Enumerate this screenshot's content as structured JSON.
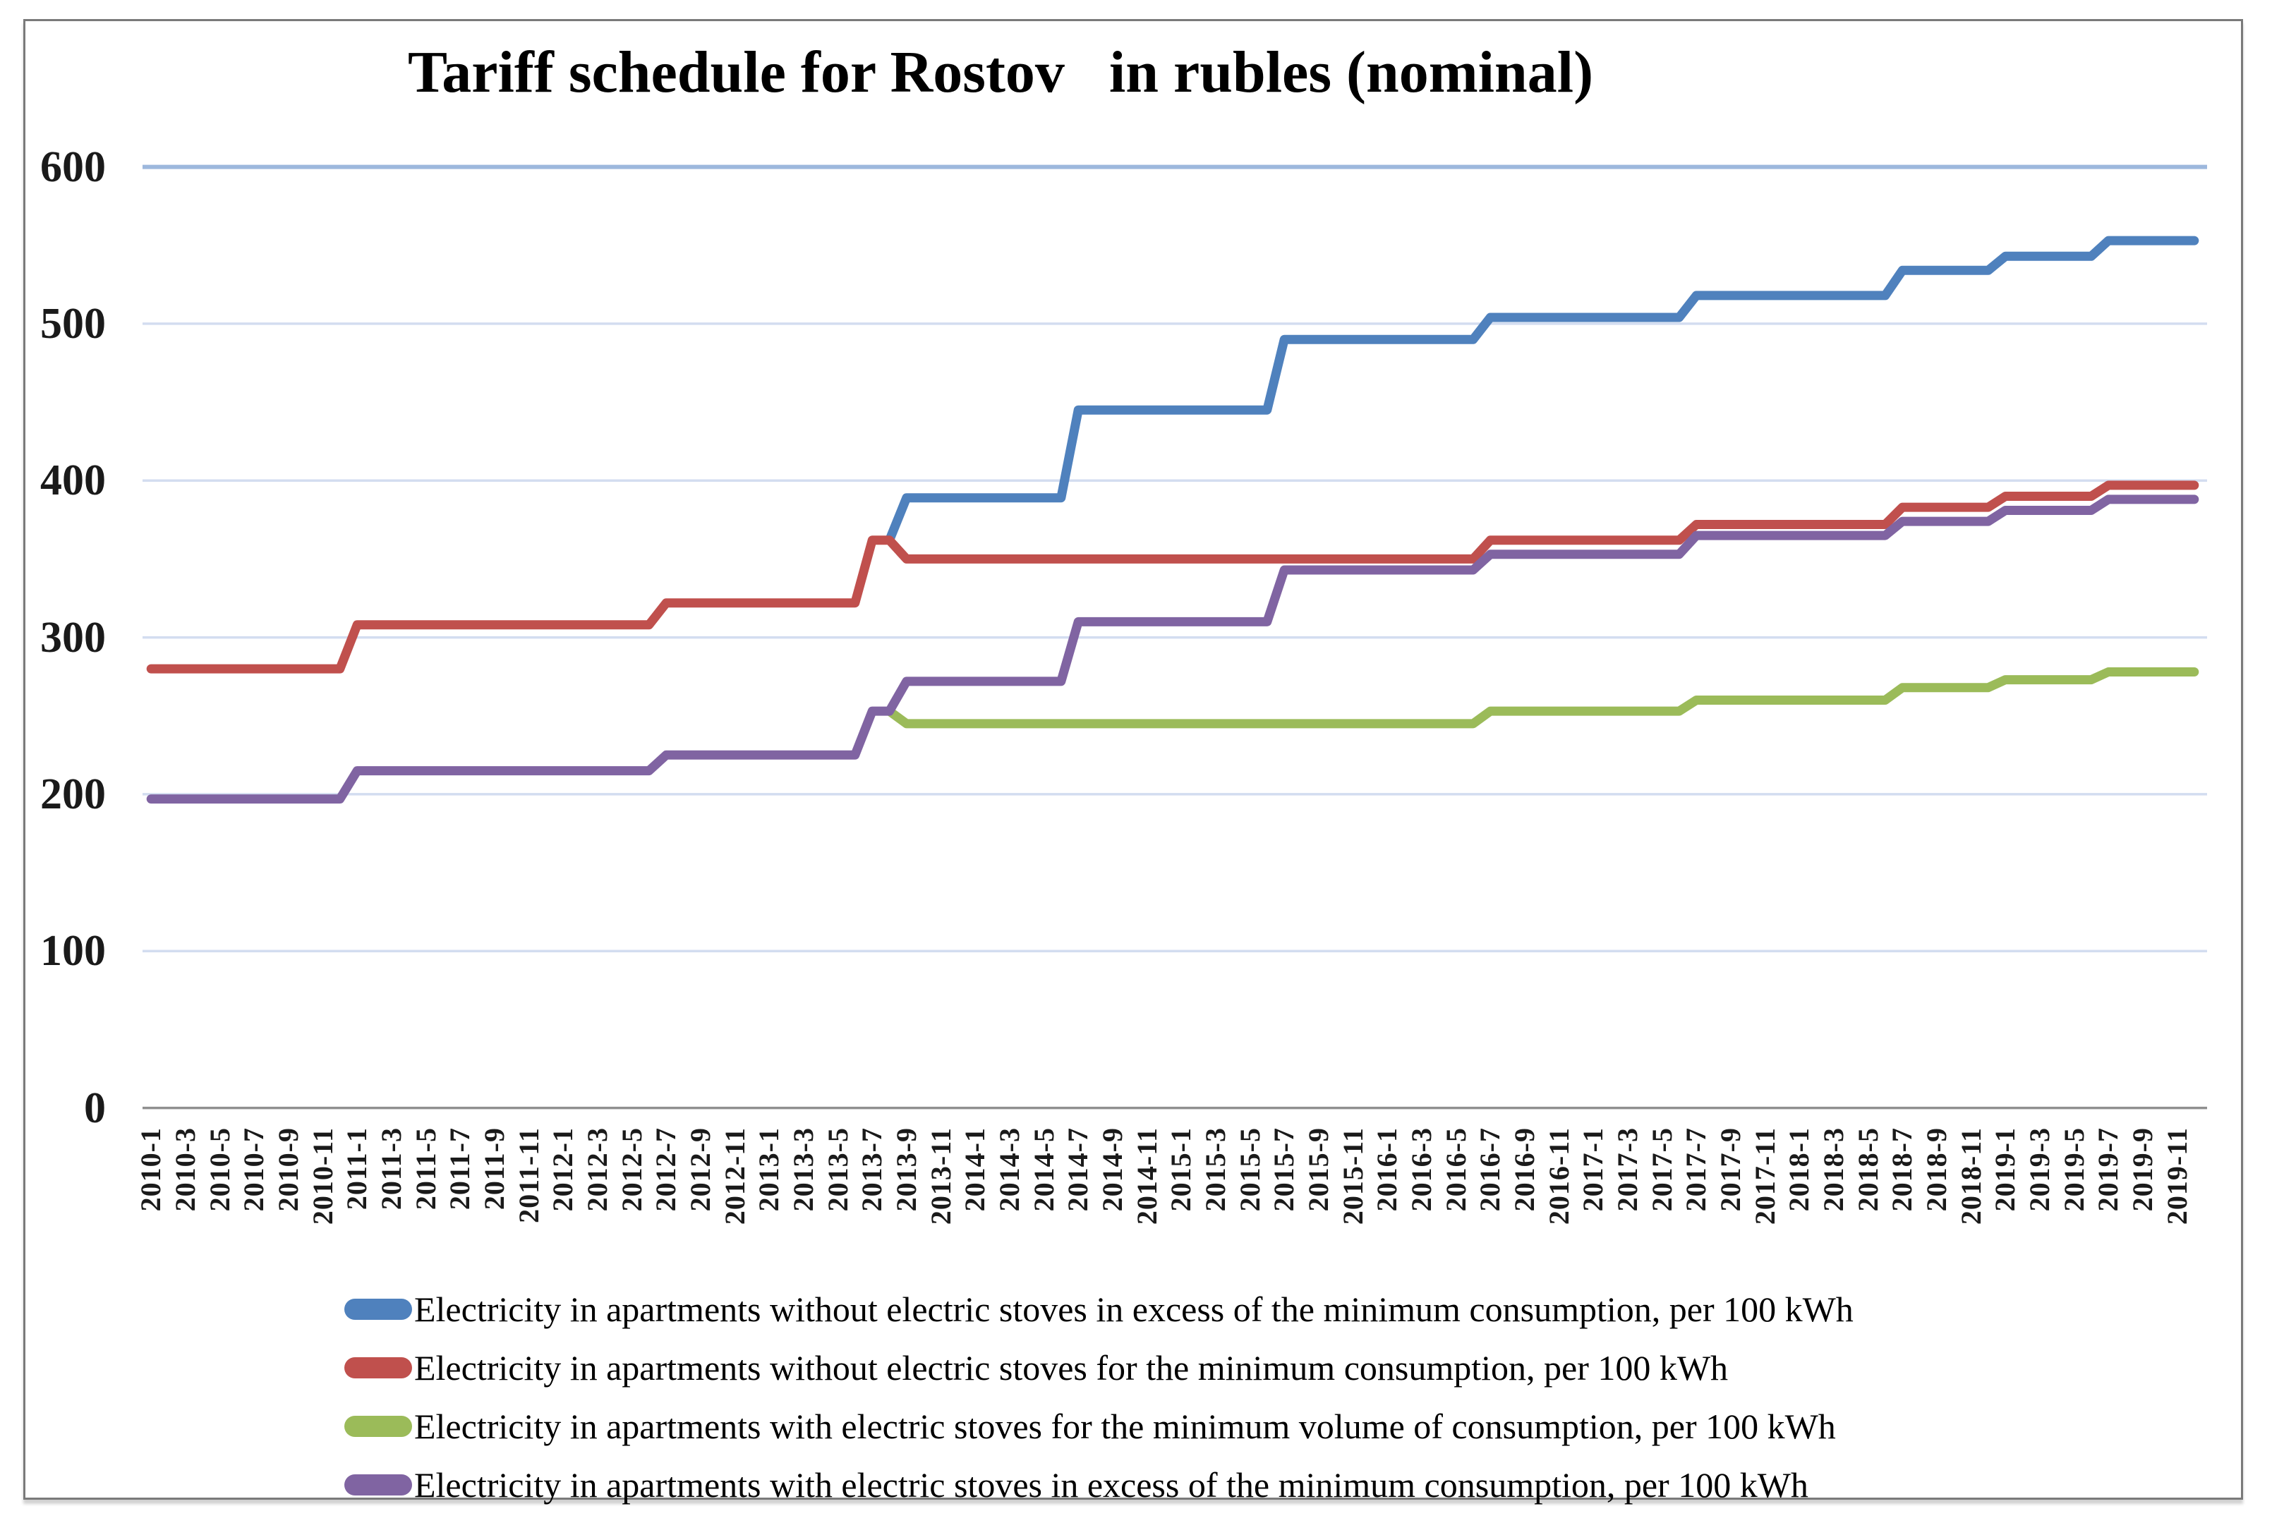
{
  "chart_data": {
    "type": "line",
    "title": "Tariff schedule for Rostov   in rubles (nominal)",
    "units": "rubles per 100 kWh (nominal)",
    "grid": "horizontal",
    "legend_position": "bottom",
    "ylim": [
      0,
      600
    ],
    "yticks": [
      600,
      500,
      400,
      300,
      200,
      100,
      0
    ],
    "x": {
      "start": "2010-1",
      "end": "2019-12",
      "months_total": 120,
      "shown_tick_labels": [
        "2010-1",
        "2010-3",
        "2010-5",
        "2010-7",
        "2010-9",
        "2010-11",
        "2011-1",
        "2011-3",
        "2011-5",
        "2011-7",
        "2011-9",
        "2011-11",
        "2012-1",
        "2012-3",
        "2012-5",
        "2012-7",
        "2012-9",
        "2012-11",
        "2013-1",
        "2013-3",
        "2013-5",
        "2013-7",
        "2013-9",
        "2013-11",
        "2014-1",
        "2014-3",
        "2014-5",
        "2014-7",
        "2014-9",
        "2014-11",
        "2015-1",
        "2015-3",
        "2015-5",
        "2015-7",
        "2015-9",
        "2015-11",
        "2016-1",
        "2016-3",
        "2016-5",
        "2016-7",
        "2016-9",
        "2016-11",
        "2017-1",
        "2017-3",
        "2017-5",
        "2017-7",
        "2017-9",
        "2017-11",
        "2018-1",
        "2018-3",
        "2018-5",
        "2018-7",
        "2018-9",
        "2018-11",
        "2019-1",
        "2019-3",
        "2019-5",
        "2019-7",
        "2019-9",
        "2019-11"
      ]
    },
    "steps_note": "steps = [month, value]; the value (rubles per 100 kWh) holds from that month until the next step; series start at their first step month",
    "series": [
      {
        "name": "Electricity in apartments without electric stoves in excess of the minimum consumption, per 100 kWh",
        "color": "#4F81BD",
        "steps": [
          [
            "2013-8",
            362
          ],
          [
            "2013-9",
            389
          ],
          [
            "2014-7",
            445
          ],
          [
            "2015-7",
            490
          ],
          [
            "2016-7",
            504
          ],
          [
            "2017-7",
            518
          ],
          [
            "2018-7",
            534
          ],
          [
            "2019-1",
            543
          ],
          [
            "2019-7",
            553
          ]
        ]
      },
      {
        "name": "Electricity in apartments without electric stoves for the minimum consumption, per 100 kWh",
        "color": "#C0504D",
        "steps": [
          [
            "2010-1",
            280
          ],
          [
            "2011-1",
            308
          ],
          [
            "2012-7",
            322
          ],
          [
            "2013-7",
            362
          ],
          [
            "2013-9",
            350
          ],
          [
            "2016-7",
            362
          ],
          [
            "2017-7",
            372
          ],
          [
            "2018-7",
            383
          ],
          [
            "2019-1",
            390
          ],
          [
            "2019-7",
            397
          ]
        ]
      },
      {
        "name": "Electricity in apartments with electric stoves for the minimum volume of consumption, per 100 kWh",
        "color": "#9BBB59",
        "steps": [
          [
            "2013-8",
            253
          ],
          [
            "2013-9",
            245
          ],
          [
            "2016-7",
            253
          ],
          [
            "2017-7",
            260
          ],
          [
            "2018-7",
            268
          ],
          [
            "2019-1",
            273
          ],
          [
            "2019-7",
            278
          ]
        ]
      },
      {
        "name": "Electricity in apartments with electric stoves in excess of the minimum consumption, per 100 kWh",
        "color": "#8064A2",
        "steps": [
          [
            "2010-1",
            197
          ],
          [
            "2011-1",
            215
          ],
          [
            "2012-7",
            225
          ],
          [
            "2013-7",
            253
          ],
          [
            "2013-9",
            272
          ],
          [
            "2014-7",
            310
          ],
          [
            "2015-7",
            343
          ],
          [
            "2016-7",
            353
          ],
          [
            "2017-7",
            365
          ],
          [
            "2018-7",
            374
          ],
          [
            "2019-1",
            381
          ],
          [
            "2019-7",
            388
          ]
        ]
      }
    ]
  }
}
